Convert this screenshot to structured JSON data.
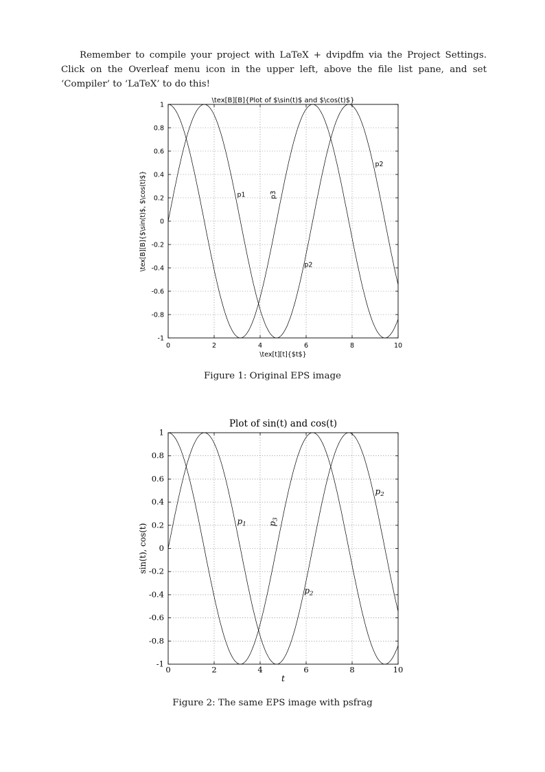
{
  "intro": {
    "text": "Remember to compile your project with LaTeX + dvipdfm via the Project Settings. Click on the Overleaf menu icon in the upper left, above the file list pane, and set ‘Compiler’ to ‘LaTeX’ to do this!"
  },
  "figures": [
    {
      "caption": "Figure 1: Original EPS image"
    },
    {
      "caption": "Figure 2: The same EPS image with psfrag"
    }
  ],
  "chart_data": [
    {
      "type": "line",
      "title": "\\tex[B][B]{Plot of $\\sin(t)$ and $\\cos(t)$}",
      "xlabel": "\\tex[t][t]{$t$}",
      "ylabel": "\\tex[B][B]{$\\sin(t)$, $\\cos(t)$}",
      "xlim": [
        0,
        10
      ],
      "ylim": [
        -1,
        1
      ],
      "xticks": [
        0,
        2,
        4,
        6,
        8,
        10
      ],
      "xtick_labels": [
        "0",
        "2",
        "4",
        "6",
        "8",
        "10"
      ],
      "yticks": [
        -1,
        -0.8,
        -0.6,
        -0.4,
        -0.2,
        0,
        0.2,
        0.4,
        0.6,
        0.8,
        1
      ],
      "ytick_labels": [
        "-1",
        "-0.8",
        "-0.6",
        "-0.4",
        "-0.2",
        "0",
        "0.2",
        "0.4",
        "0.6",
        "0.8",
        "1"
      ],
      "grid": "dotted",
      "legend": "none",
      "series": [
        {
          "id": "sin-curve",
          "name": "sin(t)",
          "fn": "sin"
        },
        {
          "id": "cos-curve",
          "name": "cos(t)",
          "fn": "cos"
        }
      ],
      "annotations": [
        {
          "main": "p1",
          "sub": "",
          "x": 3.0,
          "y": 0.21,
          "rotate": 0
        },
        {
          "main": "p3",
          "sub": "",
          "x": 4.65,
          "y": 0.19,
          "rotate": -90
        },
        {
          "main": "p2",
          "sub": "",
          "x": 5.92,
          "y": -0.39,
          "rotate": 0
        },
        {
          "main": "p2",
          "sub": "",
          "x": 9.0,
          "y": 0.47,
          "rotate": 0
        }
      ]
    },
    {
      "type": "line",
      "title": "Plot of sin(t) and cos(t)",
      "xlabel": "t",
      "ylabel": "sin(t), cos(t)",
      "xlim": [
        0,
        10
      ],
      "ylim": [
        -1,
        1
      ],
      "xticks": [
        0,
        2,
        4,
        6,
        8,
        10
      ],
      "xtick_labels": [
        "0",
        "2",
        "4",
        "6",
        "8",
        "10"
      ],
      "yticks": [
        -1,
        -0.8,
        -0.6,
        -0.4,
        -0.2,
        0,
        0.2,
        0.4,
        0.6,
        0.8,
        1
      ],
      "ytick_labels": [
        "-1",
        "-0.8",
        "-0.6",
        "-0.4",
        "-0.2",
        "0",
        "0.2",
        "0.4",
        "0.6",
        "0.8",
        "1"
      ],
      "grid": "dotted",
      "legend": "none",
      "series": [
        {
          "id": "sin-curve",
          "name": "sin(t)",
          "fn": "sin"
        },
        {
          "id": "cos-curve",
          "name": "cos(t)",
          "fn": "cos"
        }
      ],
      "annotations": [
        {
          "main": "p",
          "sub": "1",
          "x": 3.0,
          "y": 0.21,
          "rotate": 0
        },
        {
          "main": "p",
          "sub": "3",
          "x": 4.65,
          "y": 0.19,
          "rotate": -90
        },
        {
          "main": "p",
          "sub": "2",
          "x": 5.92,
          "y": -0.39,
          "rotate": 0
        },
        {
          "main": "p",
          "sub": "2",
          "x": 9.0,
          "y": 0.47,
          "rotate": 0
        }
      ]
    }
  ]
}
